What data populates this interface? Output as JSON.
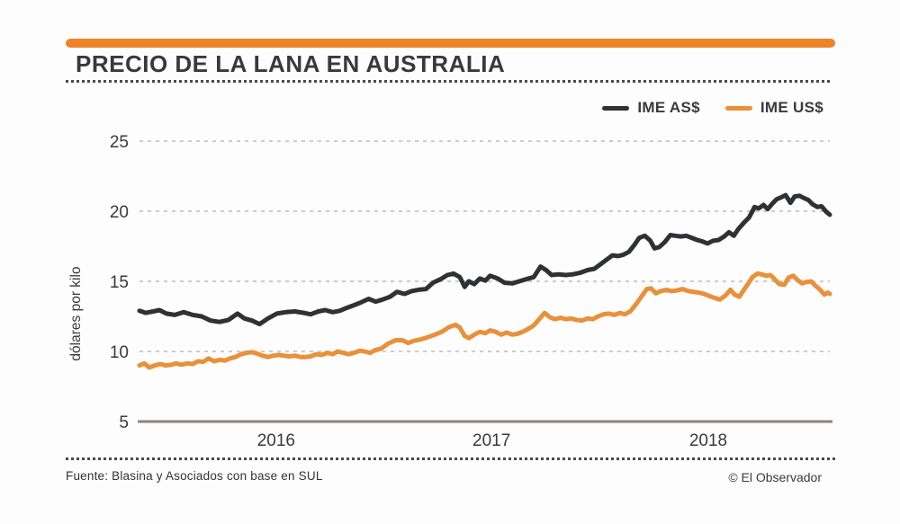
{
  "header": {
    "title": "PRECIO DE LA LANA EN AUSTRALIA"
  },
  "footer": {
    "source": "Fuente: Blasina y Asociados con base en SUL",
    "credit": "© El Observador"
  },
  "chart_data": {
    "type": "line",
    "title": "PRECIO DE LA LANA EN AUSTRALIA",
    "xlabel": "",
    "ylabel": "dólares por kilo",
    "ylim": [
      5,
      25
    ],
    "y_ticks": [
      25,
      20,
      15,
      10,
      5
    ],
    "x_ticks": [
      {
        "label": "2016",
        "t": 0.198
      },
      {
        "label": "2017",
        "t": 0.51
      },
      {
        "label": "2018",
        "t": 0.824
      }
    ],
    "grid": "horizontal-dashed",
    "legend_position": "top-right",
    "colors": {
      "accent": "#ef8327",
      "gridline": "#bcbcbc",
      "axis": "#8a8580",
      "text": "#3a3a3c"
    },
    "series": [
      {
        "name": "IME AS$",
        "color": "#303136",
        "points": [
          [
            0.0,
            12.9
          ],
          [
            0.009,
            12.75
          ],
          [
            0.02,
            12.85
          ],
          [
            0.029,
            12.95
          ],
          [
            0.039,
            12.7
          ],
          [
            0.051,
            12.6
          ],
          [
            0.064,
            12.8
          ],
          [
            0.077,
            12.6
          ],
          [
            0.09,
            12.5
          ],
          [
            0.103,
            12.2
          ],
          [
            0.116,
            12.1
          ],
          [
            0.129,
            12.25
          ],
          [
            0.142,
            12.7
          ],
          [
            0.152,
            12.35
          ],
          [
            0.163,
            12.2
          ],
          [
            0.174,
            11.95
          ],
          [
            0.186,
            12.35
          ],
          [
            0.199,
            12.7
          ],
          [
            0.212,
            12.8
          ],
          [
            0.225,
            12.85
          ],
          [
            0.238,
            12.75
          ],
          [
            0.248,
            12.65
          ],
          [
            0.259,
            12.85
          ],
          [
            0.269,
            12.95
          ],
          [
            0.28,
            12.8
          ],
          [
            0.29,
            12.9
          ],
          [
            0.3,
            13.1
          ],
          [
            0.311,
            13.3
          ],
          [
            0.321,
            13.5
          ],
          [
            0.332,
            13.75
          ],
          [
            0.342,
            13.55
          ],
          [
            0.352,
            13.7
          ],
          [
            0.363,
            13.9
          ],
          [
            0.373,
            14.25
          ],
          [
            0.384,
            14.1
          ],
          [
            0.394,
            14.3
          ],
          [
            0.404,
            14.4
          ],
          [
            0.415,
            14.45
          ],
          [
            0.425,
            14.9
          ],
          [
            0.436,
            15.15
          ],
          [
            0.446,
            15.45
          ],
          [
            0.455,
            15.55
          ],
          [
            0.464,
            15.3
          ],
          [
            0.471,
            14.6
          ],
          [
            0.477,
            15.0
          ],
          [
            0.485,
            14.8
          ],
          [
            0.493,
            15.2
          ],
          [
            0.501,
            15.05
          ],
          [
            0.508,
            15.4
          ],
          [
            0.519,
            15.2
          ],
          [
            0.529,
            14.9
          ],
          [
            0.54,
            14.85
          ],
          [
            0.55,
            15.0
          ],
          [
            0.56,
            15.15
          ],
          [
            0.571,
            15.3
          ],
          [
            0.581,
            16.05
          ],
          [
            0.589,
            15.8
          ],
          [
            0.597,
            15.45
          ],
          [
            0.607,
            15.5
          ],
          [
            0.618,
            15.45
          ],
          [
            0.628,
            15.5
          ],
          [
            0.638,
            15.6
          ],
          [
            0.649,
            15.8
          ],
          [
            0.659,
            15.9
          ],
          [
            0.67,
            16.3
          ],
          [
            0.685,
            16.85
          ],
          [
            0.693,
            16.8
          ],
          [
            0.701,
            16.9
          ],
          [
            0.709,
            17.1
          ],
          [
            0.717,
            17.6
          ],
          [
            0.724,
            18.1
          ],
          [
            0.732,
            18.25
          ],
          [
            0.74,
            17.9
          ],
          [
            0.746,
            17.35
          ],
          [
            0.753,
            17.45
          ],
          [
            0.761,
            17.8
          ],
          [
            0.769,
            18.3
          ],
          [
            0.776,
            18.25
          ],
          [
            0.784,
            18.2
          ],
          [
            0.792,
            18.25
          ],
          [
            0.8,
            18.1
          ],
          [
            0.808,
            17.95
          ],
          [
            0.815,
            17.85
          ],
          [
            0.823,
            17.7
          ],
          [
            0.831,
            17.9
          ],
          [
            0.839,
            17.95
          ],
          [
            0.847,
            18.2
          ],
          [
            0.854,
            18.5
          ],
          [
            0.861,
            18.25
          ],
          [
            0.867,
            18.7
          ],
          [
            0.875,
            19.15
          ],
          [
            0.883,
            19.55
          ],
          [
            0.891,
            20.3
          ],
          [
            0.897,
            20.2
          ],
          [
            0.904,
            20.45
          ],
          [
            0.91,
            20.15
          ],
          [
            0.917,
            20.55
          ],
          [
            0.923,
            20.85
          ],
          [
            0.93,
            21.0
          ],
          [
            0.936,
            21.15
          ],
          [
            0.943,
            20.6
          ],
          [
            0.949,
            21.05
          ],
          [
            0.956,
            21.1
          ],
          [
            0.962,
            20.95
          ],
          [
            0.969,
            20.8
          ],
          [
            0.975,
            20.5
          ],
          [
            0.982,
            20.3
          ],
          [
            0.988,
            20.35
          ],
          [
            0.995,
            19.95
          ],
          [
            1.0,
            19.75
          ]
        ]
      },
      {
        "name": "IME US$",
        "color": "#e8913a",
        "points": [
          [
            0.0,
            9.0
          ],
          [
            0.007,
            9.15
          ],
          [
            0.014,
            8.85
          ],
          [
            0.022,
            9.0
          ],
          [
            0.03,
            9.1
          ],
          [
            0.038,
            9.0
          ],
          [
            0.046,
            9.05
          ],
          [
            0.053,
            9.15
          ],
          [
            0.061,
            9.05
          ],
          [
            0.069,
            9.15
          ],
          [
            0.077,
            9.1
          ],
          [
            0.085,
            9.3
          ],
          [
            0.092,
            9.25
          ],
          [
            0.1,
            9.5
          ],
          [
            0.108,
            9.3
          ],
          [
            0.116,
            9.4
          ],
          [
            0.124,
            9.35
          ],
          [
            0.131,
            9.5
          ],
          [
            0.139,
            9.6
          ],
          [
            0.147,
            9.8
          ],
          [
            0.155,
            9.9
          ],
          [
            0.163,
            9.95
          ],
          [
            0.17,
            9.85
          ],
          [
            0.178,
            9.7
          ],
          [
            0.186,
            9.6
          ],
          [
            0.194,
            9.7
          ],
          [
            0.202,
            9.75
          ],
          [
            0.209,
            9.7
          ],
          [
            0.217,
            9.65
          ],
          [
            0.225,
            9.7
          ],
          [
            0.233,
            9.6
          ],
          [
            0.241,
            9.6
          ],
          [
            0.248,
            9.65
          ],
          [
            0.256,
            9.8
          ],
          [
            0.264,
            9.75
          ],
          [
            0.272,
            9.9
          ],
          [
            0.28,
            9.8
          ],
          [
            0.287,
            10.0
          ],
          [
            0.295,
            9.9
          ],
          [
            0.303,
            9.8
          ],
          [
            0.311,
            9.9
          ],
          [
            0.319,
            10.05
          ],
          [
            0.326,
            10.0
          ],
          [
            0.334,
            9.9
          ],
          [
            0.342,
            10.1
          ],
          [
            0.35,
            10.2
          ],
          [
            0.36,
            10.55
          ],
          [
            0.371,
            10.8
          ],
          [
            0.381,
            10.8
          ],
          [
            0.389,
            10.6
          ],
          [
            0.397,
            10.75
          ],
          [
            0.407,
            10.85
          ],
          [
            0.417,
            11.0
          ],
          [
            0.428,
            11.2
          ],
          [
            0.438,
            11.4
          ],
          [
            0.449,
            11.75
          ],
          [
            0.458,
            11.9
          ],
          [
            0.464,
            11.7
          ],
          [
            0.471,
            11.1
          ],
          [
            0.477,
            10.95
          ],
          [
            0.485,
            11.2
          ],
          [
            0.493,
            11.4
          ],
          [
            0.501,
            11.3
          ],
          [
            0.508,
            11.5
          ],
          [
            0.516,
            11.4
          ],
          [
            0.524,
            11.2
          ],
          [
            0.532,
            11.35
          ],
          [
            0.54,
            11.2
          ],
          [
            0.547,
            11.25
          ],
          [
            0.555,
            11.4
          ],
          [
            0.563,
            11.6
          ],
          [
            0.571,
            11.85
          ],
          [
            0.579,
            12.3
          ],
          [
            0.587,
            12.75
          ],
          [
            0.594,
            12.45
          ],
          [
            0.602,
            12.3
          ],
          [
            0.61,
            12.4
          ],
          [
            0.618,
            12.3
          ],
          [
            0.625,
            12.35
          ],
          [
            0.633,
            12.25
          ],
          [
            0.641,
            12.2
          ],
          [
            0.649,
            12.35
          ],
          [
            0.657,
            12.3
          ],
          [
            0.664,
            12.5
          ],
          [
            0.672,
            12.65
          ],
          [
            0.68,
            12.7
          ],
          [
            0.688,
            12.6
          ],
          [
            0.696,
            12.75
          ],
          [
            0.703,
            12.65
          ],
          [
            0.711,
            12.85
          ],
          [
            0.719,
            13.35
          ],
          [
            0.727,
            13.9
          ],
          [
            0.735,
            14.45
          ],
          [
            0.741,
            14.5
          ],
          [
            0.748,
            14.15
          ],
          [
            0.755,
            14.3
          ],
          [
            0.763,
            14.4
          ],
          [
            0.771,
            14.3
          ],
          [
            0.779,
            14.35
          ],
          [
            0.787,
            14.45
          ],
          [
            0.795,
            14.3
          ],
          [
            0.802,
            14.25
          ],
          [
            0.81,
            14.2
          ],
          [
            0.818,
            14.1
          ],
          [
            0.826,
            13.95
          ],
          [
            0.834,
            13.8
          ],
          [
            0.841,
            13.7
          ],
          [
            0.849,
            14.0
          ],
          [
            0.856,
            14.4
          ],
          [
            0.862,
            14.05
          ],
          [
            0.869,
            13.9
          ],
          [
            0.875,
            14.35
          ],
          [
            0.882,
            14.85
          ],
          [
            0.888,
            15.3
          ],
          [
            0.895,
            15.55
          ],
          [
            0.901,
            15.5
          ],
          [
            0.908,
            15.4
          ],
          [
            0.914,
            15.45
          ],
          [
            0.921,
            15.1
          ],
          [
            0.927,
            14.8
          ],
          [
            0.934,
            14.75
          ],
          [
            0.94,
            15.25
          ],
          [
            0.947,
            15.4
          ],
          [
            0.953,
            15.1
          ],
          [
            0.96,
            14.85
          ],
          [
            0.966,
            14.95
          ],
          [
            0.973,
            15.0
          ],
          [
            0.979,
            14.7
          ],
          [
            0.986,
            14.4
          ],
          [
            0.992,
            14.05
          ],
          [
            0.997,
            14.2
          ],
          [
            1.0,
            14.1
          ]
        ]
      }
    ]
  }
}
